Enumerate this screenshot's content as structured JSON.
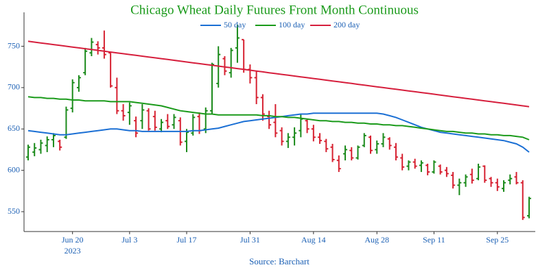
{
  "chart_data": {
    "type": "ohlc",
    "title": "Chicago Wheat Daily Futures Front Month Continuous",
    "source": "Source: Barchart",
    "x": [
      "2023-06-08",
      "2023-06-09",
      "2023-06-12",
      "2023-06-13",
      "2023-06-14",
      "2023-06-15",
      "2023-06-16",
      "2023-06-20",
      "2023-06-21",
      "2023-06-22",
      "2023-06-23",
      "2023-06-26",
      "2023-06-27",
      "2023-06-28",
      "2023-06-29",
      "2023-06-30",
      "2023-07-03",
      "2023-07-05",
      "2023-07-06",
      "2023-07-07",
      "2023-07-10",
      "2023-07-11",
      "2023-07-12",
      "2023-07-13",
      "2023-07-14",
      "2023-07-17",
      "2023-07-18",
      "2023-07-19",
      "2023-07-20",
      "2023-07-21",
      "2023-07-24",
      "2023-07-25",
      "2023-07-26",
      "2023-07-27",
      "2023-07-28",
      "2023-07-31",
      "2023-08-01",
      "2023-08-02",
      "2023-08-03",
      "2023-08-04",
      "2023-08-07",
      "2023-08-08",
      "2023-08-09",
      "2023-08-10",
      "2023-08-11",
      "2023-08-14",
      "2023-08-15",
      "2023-08-16",
      "2023-08-17",
      "2023-08-18",
      "2023-08-21",
      "2023-08-22",
      "2023-08-23",
      "2023-08-24",
      "2023-08-25",
      "2023-08-28",
      "2023-08-29",
      "2023-08-30",
      "2023-08-31",
      "2023-09-01",
      "2023-09-05",
      "2023-09-06",
      "2023-09-07",
      "2023-09-08",
      "2023-09-11",
      "2023-09-12",
      "2023-09-13",
      "2023-09-14",
      "2023-09-15",
      "2023-09-18",
      "2023-09-19",
      "2023-09-20",
      "2023-09-21",
      "2023-09-22",
      "2023-09-25",
      "2023-09-26",
      "2023-09-27",
      "2023-09-28",
      "2023-09-29",
      "2023-10-02"
    ],
    "open": [
      616,
      622,
      625,
      630,
      637,
      635,
      640,
      675,
      700,
      718,
      742,
      752,
      748,
      742,
      700,
      672,
      670,
      660,
      660,
      672,
      665,
      650,
      660,
      655,
      660,
      635,
      645,
      665,
      650,
      672,
      705,
      735,
      718,
      748,
      758,
      722,
      712,
      688,
      665,
      658,
      648,
      635,
      640,
      648,
      660,
      650,
      640,
      635,
      628,
      612,
      620,
      624,
      615,
      630,
      640,
      625,
      632,
      638,
      628,
      615,
      605,
      610,
      606,
      606,
      598,
      605,
      600,
      594,
      582,
      585,
      595,
      590,
      605,
      590,
      585,
      578,
      588,
      592,
      585,
      545
    ],
    "high": [
      631,
      633,
      637,
      641,
      645,
      637,
      677,
      710,
      715,
      748,
      760,
      756,
      769,
      742,
      712,
      680,
      682,
      665,
      680,
      675,
      672,
      662,
      668,
      668,
      664,
      650,
      668,
      670,
      676,
      730,
      750,
      738,
      748,
      776,
      758,
      728,
      720,
      692,
      672,
      680,
      652,
      645,
      652,
      668,
      662,
      655,
      645,
      638,
      632,
      618,
      630,
      628,
      630,
      645,
      642,
      636,
      645,
      640,
      633,
      620,
      612,
      614,
      612,
      608,
      612,
      607,
      604,
      598,
      590,
      595,
      602,
      608,
      606,
      592,
      590,
      588,
      595,
      598,
      588,
      568
    ],
    "low": [
      612,
      617,
      620,
      622,
      628,
      624,
      638,
      670,
      695,
      715,
      738,
      740,
      735,
      700,
      668,
      660,
      655,
      640,
      650,
      648,
      648,
      646,
      650,
      650,
      630,
      622,
      642,
      644,
      645,
      668,
      700,
      715,
      712,
      730,
      718,
      705,
      680,
      660,
      650,
      640,
      630,
      627,
      630,
      640,
      645,
      635,
      632,
      622,
      610,
      598,
      612,
      612,
      613,
      628,
      620,
      620,
      628,
      625,
      612,
      600,
      600,
      602,
      598,
      594,
      596,
      595,
      592,
      578,
      570,
      580,
      584,
      588,
      585,
      580,
      575,
      574,
      583,
      583,
      540,
      542
    ],
    "close": [
      628,
      627,
      633,
      637,
      642,
      628,
      673,
      706,
      712,
      744,
      755,
      748,
      740,
      702,
      672,
      666,
      678,
      645,
      673,
      650,
      652,
      658,
      653,
      664,
      634,
      646,
      664,
      648,
      672,
      728,
      740,
      720,
      745,
      760,
      722,
      712,
      688,
      668,
      655,
      645,
      635,
      640,
      645,
      662,
      650,
      640,
      636,
      626,
      613,
      602,
      625,
      615,
      628,
      642,
      624,
      632,
      640,
      630,
      616,
      604,
      610,
      605,
      609,
      598,
      610,
      598,
      596,
      582,
      585,
      592,
      588,
      604,
      588,
      585,
      580,
      585,
      590,
      585,
      543,
      566
    ],
    "up_color": "#1a8a1a",
    "down_color": "#d62030",
    "series": [
      {
        "name": "50 day",
        "color": "#1a6fd4",
        "values": [
          648,
          647,
          646,
          645,
          644,
          643,
          643,
          644,
          645,
          646,
          647,
          648,
          649,
          650,
          650,
          649,
          648,
          648,
          647,
          647,
          647,
          647,
          647,
          647,
          647,
          647,
          648,
          648,
          649,
          650,
          651,
          653,
          655,
          657,
          659,
          660,
          661,
          662,
          663,
          664,
          665,
          666,
          667,
          668,
          668,
          669,
          669,
          669,
          669,
          669,
          669,
          669,
          669,
          669,
          669,
          669,
          668,
          666,
          664,
          661,
          658,
          655,
          652,
          650,
          648,
          646,
          645,
          644,
          643,
          642,
          641,
          640,
          639,
          638,
          637,
          636,
          634,
          632,
          628,
          622
        ]
      },
      {
        "name": "100 day",
        "color": "#1a9a1a",
        "values": [
          689,
          688,
          688,
          687,
          687,
          686,
          686,
          685,
          685,
          684,
          684,
          684,
          684,
          683,
          683,
          683,
          683,
          682,
          681,
          680,
          679,
          678,
          676,
          674,
          672,
          671,
          670,
          669,
          668,
          668,
          667,
          667,
          667,
          667,
          667,
          667,
          667,
          666,
          666,
          665,
          665,
          664,
          664,
          663,
          662,
          661,
          660,
          660,
          659,
          659,
          658,
          658,
          657,
          657,
          656,
          656,
          655,
          655,
          654,
          654,
          653,
          652,
          651,
          650,
          649,
          648,
          647,
          647,
          646,
          645,
          645,
          644,
          644,
          643,
          643,
          642,
          642,
          641,
          640,
          637
        ]
      },
      {
        "name": "200 day",
        "color": "#d61e3c",
        "values": [
          756,
          755,
          754,
          753,
          752,
          751,
          750,
          749,
          748,
          747,
          746,
          745,
          744,
          743,
          742,
          741,
          740,
          739,
          738,
          737,
          736,
          735,
          734,
          733,
          732,
          731,
          730,
          729,
          728,
          727,
          726,
          725,
          724,
          723,
          722,
          721,
          720,
          719,
          718,
          717,
          716,
          715,
          714,
          713,
          712,
          711,
          710,
          709,
          708,
          707,
          706,
          705,
          704,
          703,
          702,
          701,
          700,
          699,
          698,
          697,
          696,
          695,
          694,
          693,
          692,
          691,
          690,
          689,
          688,
          687,
          686,
          685,
          684,
          683,
          682,
          681,
          680,
          679,
          678,
          677
        ]
      }
    ],
    "ylim": [
      526,
      791
    ],
    "yticks": [
      550,
      600,
      650,
      700,
      750
    ],
    "xticks": [
      {
        "value": "2023-06-20",
        "label": "Jun 20"
      },
      {
        "value": "2023-07-03",
        "label": "Jul 3"
      },
      {
        "value": "2023-07-17",
        "label": "Jul 17"
      },
      {
        "value": "2023-07-31",
        "label": "Jul 31"
      },
      {
        "value": "2023-08-14",
        "label": "Aug 14"
      },
      {
        "value": "2023-08-28",
        "label": "Aug 28"
      },
      {
        "value": "2023-09-11",
        "label": "Sep 11"
      },
      {
        "value": "2023-09-25",
        "label": "Sep 25"
      }
    ],
    "x_year_label": "2023"
  }
}
